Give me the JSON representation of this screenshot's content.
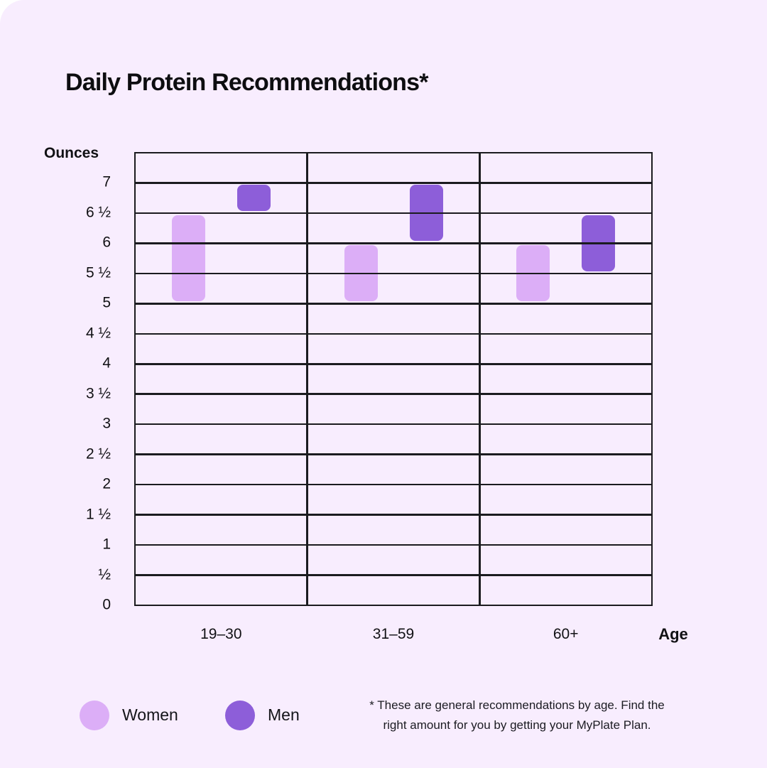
{
  "title": "Daily Protein Recommendations*",
  "y_axis_title": "Ounces",
  "x_axis_title": "Age",
  "chart_data": {
    "type": "bar",
    "subtype": "floating-range-bars",
    "title": "Daily Protein Recommendations*",
    "ylabel": "Ounces",
    "xlabel": "Age",
    "grid": true,
    "legend_position": "bottom",
    "y_axis": {
      "min": 0,
      "max": 7.5,
      "tick_step": 0.5,
      "tick_labels": [
        "7",
        "6 ½",
        "6",
        "5 ½",
        "5",
        "4 ½",
        "4",
        "3 ½",
        "3",
        "2 ½",
        "2",
        "1 ½",
        "1",
        "½",
        "0"
      ]
    },
    "x_axis": {
      "categories": [
        "19–30",
        "31–59",
        "60+"
      ]
    },
    "series": [
      {
        "name": "Women",
        "color": "#dcaef7",
        "ranges_oz": [
          [
            5,
            6.5
          ],
          [
            5,
            6
          ],
          [
            5,
            6
          ]
        ]
      },
      {
        "name": "Men",
        "color": "#8d5ed9",
        "ranges_oz": [
          [
            6.5,
            7
          ],
          [
            6,
            7
          ],
          [
            5.5,
            6.5
          ]
        ]
      }
    ]
  },
  "legend": {
    "items": [
      {
        "label": "Women",
        "color": "#dcaef7"
      },
      {
        "label": "Men",
        "color": "#8d5ed9"
      }
    ]
  },
  "footnote": {
    "line1": "* These are general recommendations by age. Find the",
    "line2": "right amount for you by getting your MyPlate Plan."
  },
  "colors": {
    "background": "#f8edfe",
    "grid_line": "#1b1b1f",
    "text": "#111114",
    "women": "#dcaef7",
    "men": "#8d5ed9"
  }
}
